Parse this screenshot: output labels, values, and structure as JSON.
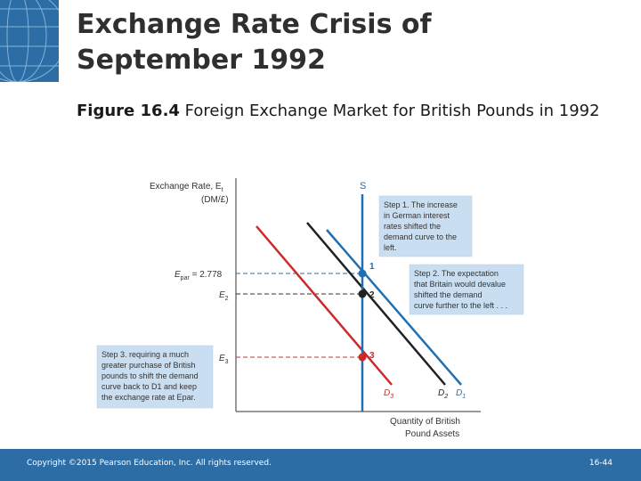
{
  "slide": {
    "title_line1": "Exchange Rate Crisis of",
    "title_line2": "September 1992",
    "figure_label": "Figure 16.4",
    "figure_caption": " Foreign Exchange Market for British Pounds in 1992"
  },
  "diagram": {
    "y_axis_label_line1": "Exchange Rate, E",
    "y_axis_label_sub": "t",
    "y_axis_label_line2": "(DM/£)",
    "x_axis_label_line1": "Quantity of British",
    "x_axis_label_line2": "Pound Assets",
    "e_par_label": "E",
    "e_par_sub": "par",
    "e_par_value": " = 2.778",
    "e2_label": "E",
    "e2_sub": "2",
    "e3_label": "E",
    "e3_sub": "3",
    "supply_label": "S",
    "point1": "1",
    "point2": "2",
    "point3": "3",
    "d1_label": "D",
    "d1_sub": "1",
    "d2_label": "D",
    "d2_sub": "2",
    "d3_label": "D",
    "d3_sub": "3",
    "step1_lines": [
      "Step 1. The increase",
      "in German interest",
      "rates shifted the",
      "demand curve to the",
      "left."
    ],
    "step2_lines": [
      "Step 2. The expectation",
      "that Britain would devalue",
      "shifted the demand",
      "curve further to the left . . ."
    ],
    "step3_lines": [
      "Step 3. requiring a much",
      "greater purchase of British",
      "pounds to shift the demand",
      "curve back to D1 and keep",
      "the exchange rate at Epar."
    ]
  },
  "colors": {
    "brand_blue": "#2b6da4",
    "supply_line": "#1f6fb2",
    "d1_line": "#1f6fb2",
    "d2_line": "#222222",
    "d3_line": "#cc2a2a",
    "note_box": "#c9dff1"
  },
  "footer": {
    "copyright": "Copyright ©2015 Pearson Education, Inc. All rights reserved.",
    "page": "16-44"
  }
}
